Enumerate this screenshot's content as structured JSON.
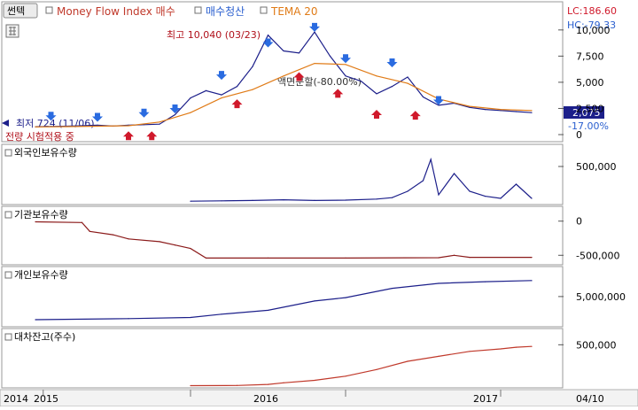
{
  "toolbar": {
    "tab_label": "썬텍",
    "indicators": [
      {
        "label": "Money Flow Index 매수",
        "color": "#c0392b"
      },
      {
        "label": "매수청산",
        "color": "#2a5fcf"
      },
      {
        "label": "TEMA 20",
        "color": "#e07b17"
      }
    ]
  },
  "price_panel": {
    "right_labels": {
      "lc": "LC:186.60",
      "hc": "HC:-79.33"
    },
    "annotations": {
      "high": "최고 10,040 (03/23)",
      "low": "최저 724 (11/06)",
      "split": "액면분할(-80.00%)",
      "mark_bottom": "전량 시험적용 중"
    },
    "current_price": "2,075",
    "current_change": "-17.00%"
  },
  "panels": [
    {
      "title": "외국인보유수량",
      "color": "#1c1f8a"
    },
    {
      "title": "기관보유수량",
      "color": "#8b1a1a"
    },
    {
      "title": "개인보유수량",
      "color": "#1c1f8a"
    },
    {
      "title": "대차잔고(주수)",
      "color": "#c0392b"
    }
  ],
  "x_axis": {
    "ticks": [
      "2014",
      "2015",
      "2016",
      "2017"
    ],
    "end_label": "04/10"
  },
  "chart_data": [
    {
      "type": "line",
      "panel": "price",
      "ylim": [
        0,
        11000
      ],
      "yticks": [
        "10,000",
        "7,500",
        "5,000",
        "2,500",
        "0"
      ],
      "series": [
        {
          "name": "Price",
          "x": [
            0.0,
            0.1,
            0.2,
            0.3,
            0.4,
            0.5,
            0.6,
            0.7,
            0.8,
            0.9,
            1.0,
            1.1,
            1.2,
            1.3,
            1.4,
            1.5,
            1.6,
            1.7,
            1.8,
            1.9,
            2.0,
            2.1,
            2.2,
            2.3,
            2.4,
            2.5,
            2.6,
            2.7,
            2.8,
            2.9,
            3.0,
            3.1,
            3.2
          ],
          "values": [
            750,
            780,
            800,
            850,
            900,
            820,
            900,
            950,
            1000,
            1900,
            3500,
            4200,
            3800,
            4600,
            6500,
            9500,
            8000,
            7800,
            9800,
            7500,
            5600,
            5100,
            3900,
            4600,
            5500,
            3600,
            2800,
            3000,
            2600,
            2400,
            2300,
            2200,
            2100
          ]
        },
        {
          "name": "TEMA 20",
          "x": [
            0.0,
            0.2,
            0.4,
            0.6,
            0.8,
            1.0,
            1.2,
            1.4,
            1.6,
            1.8,
            2.0,
            2.2,
            2.4,
            2.6,
            2.8,
            3.0,
            3.2
          ],
          "values": [
            740,
            760,
            800,
            850,
            1200,
            2100,
            3500,
            4300,
            5600,
            6800,
            6700,
            5600,
            4900,
            3400,
            2700,
            2400,
            2300
          ]
        }
      ]
    },
    {
      "type": "line",
      "panel": "외국인보유수량",
      "ylim": [
        0,
        700000
      ],
      "yticks": [
        "500,000"
      ],
      "series": [
        {
          "name": "외국인보유수량",
          "x": [
            1.0,
            1.2,
            1.4,
            1.6,
            1.8,
            2.0,
            2.2,
            2.3,
            2.4,
            2.5,
            2.55,
            2.6,
            2.7,
            2.8,
            2.9,
            3.0,
            3.1,
            3.2
          ],
          "values": [
            10000,
            15000,
            20000,
            30000,
            20000,
            25000,
            40000,
            60000,
            150000,
            300000,
            600000,
            100000,
            400000,
            150000,
            80000,
            50000,
            250000,
            50000
          ]
        }
      ]
    },
    {
      "type": "line",
      "panel": "기관보유수량",
      "ylim": [
        -600000,
        100000
      ],
      "yticks": [
        "0",
        "-500,000"
      ],
      "series": [
        {
          "name": "기관보유수량",
          "x": [
            0.0,
            0.3,
            0.35,
            0.5,
            0.6,
            0.8,
            0.9,
            1.0,
            1.1,
            1.5,
            2.0,
            2.6,
            2.7,
            2.8,
            3.2
          ],
          "values": [
            -10000,
            -20000,
            -150000,
            -200000,
            -260000,
            -300000,
            -350000,
            -400000,
            -540000,
            -540000,
            -540000,
            -535000,
            -500000,
            -530000,
            -530000
          ]
        }
      ]
    },
    {
      "type": "line",
      "panel": "개인보유수량",
      "ylim": [
        0,
        9000000
      ],
      "yticks": [
        "5,000,000"
      ],
      "series": [
        {
          "name": "개인보유수량",
          "x": [
            0.0,
            0.6,
            1.0,
            1.2,
            1.5,
            1.8,
            2.0,
            2.3,
            2.6,
            2.9,
            3.2
          ],
          "values": [
            800000,
            1000000,
            1200000,
            1800000,
            2500000,
            4200000,
            4800000,
            6500000,
            7400000,
            7700000,
            7900000
          ]
        }
      ]
    },
    {
      "type": "line",
      "panel": "대차잔고(주수)",
      "ylim": [
        0,
        600000
      ],
      "yticks": [
        "500,000"
      ],
      "series": [
        {
          "name": "대차잔고(주수)",
          "x": [
            1.0,
            1.3,
            1.5,
            1.6,
            1.8,
            2.0,
            2.2,
            2.4,
            2.6,
            2.8,
            3.0,
            3.1,
            3.2
          ],
          "values": [
            5000,
            8000,
            20000,
            40000,
            70000,
            120000,
            200000,
            300000,
            360000,
            420000,
            450000,
            470000,
            480000
          ]
        }
      ]
    }
  ]
}
